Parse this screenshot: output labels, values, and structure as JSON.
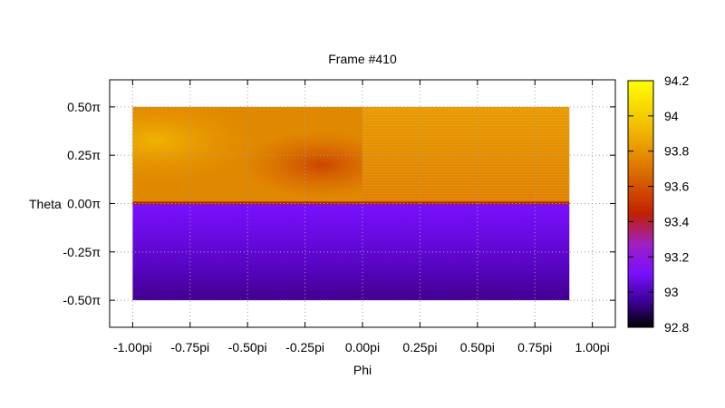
{
  "chart_data": {
    "type": "heatmap",
    "title": "Frame #410",
    "xlabel": "Phi",
    "ylabel": "Theta",
    "xlim": [
      -1.1,
      1.1
    ],
    "ylim": [
      -0.64,
      0.64
    ],
    "x_ticks": [
      {
        "value": -1.0,
        "label": "-1.00pi"
      },
      {
        "value": -0.75,
        "label": "-0.75pi"
      },
      {
        "value": -0.5,
        "label": "-0.50pi"
      },
      {
        "value": -0.25,
        "label": "-0.25pi"
      },
      {
        "value": 0.0,
        "label": "0.00pi"
      },
      {
        "value": 0.25,
        "label": "0.25pi"
      },
      {
        "value": 0.5,
        "label": "0.50pi"
      },
      {
        "value": 0.75,
        "label": "0.75pi"
      },
      {
        "value": 1.0,
        "label": "1.00pi"
      }
    ],
    "y_ticks": [
      {
        "value": 0.5,
        "label": "0.50π"
      },
      {
        "value": 0.25,
        "label": "0.25π"
      },
      {
        "value": 0.0,
        "label": "0.00π"
      },
      {
        "value": -0.25,
        "label": "-0.25π"
      },
      {
        "value": -0.5,
        "label": "-0.50π"
      }
    ],
    "grid": true,
    "data_extent": {
      "x": [
        -1.0,
        0.9
      ],
      "y": [
        -0.5,
        0.5
      ]
    },
    "regions": [
      {
        "x": [
          -1.0,
          0.0
        ],
        "y": [
          0.0,
          0.5
        ],
        "value_range": [
          93.75,
          93.95
        ],
        "description": "upper-left, warmer near phi=-1"
      },
      {
        "x": [
          0.0,
          0.9
        ],
        "y": [
          0.0,
          0.5
        ],
        "value_range": [
          93.85,
          93.9
        ]
      },
      {
        "x": [
          -1.0,
          0.9
        ],
        "y": [
          -0.5,
          0.0
        ],
        "value_range": [
          93.0,
          93.2
        ]
      }
    ],
    "colorbar": {
      "min": 92.8,
      "max": 94.2,
      "ticks": [
        {
          "value": 94.2,
          "label": "94.2"
        },
        {
          "value": 94.0,
          "label": "94"
        },
        {
          "value": 93.8,
          "label": "93.8"
        },
        {
          "value": 93.6,
          "label": "93.6"
        },
        {
          "value": 93.4,
          "label": "93.4"
        },
        {
          "value": 93.2,
          "label": "93.2"
        },
        {
          "value": 93.0,
          "label": "93"
        },
        {
          "value": 92.8,
          "label": "92.8"
        }
      ],
      "colors": [
        "#000000",
        "#3a0090",
        "#7a10ff",
        "#a020c0",
        "#c02000",
        "#d86000",
        "#f0b000",
        "#ffff00"
      ]
    }
  }
}
